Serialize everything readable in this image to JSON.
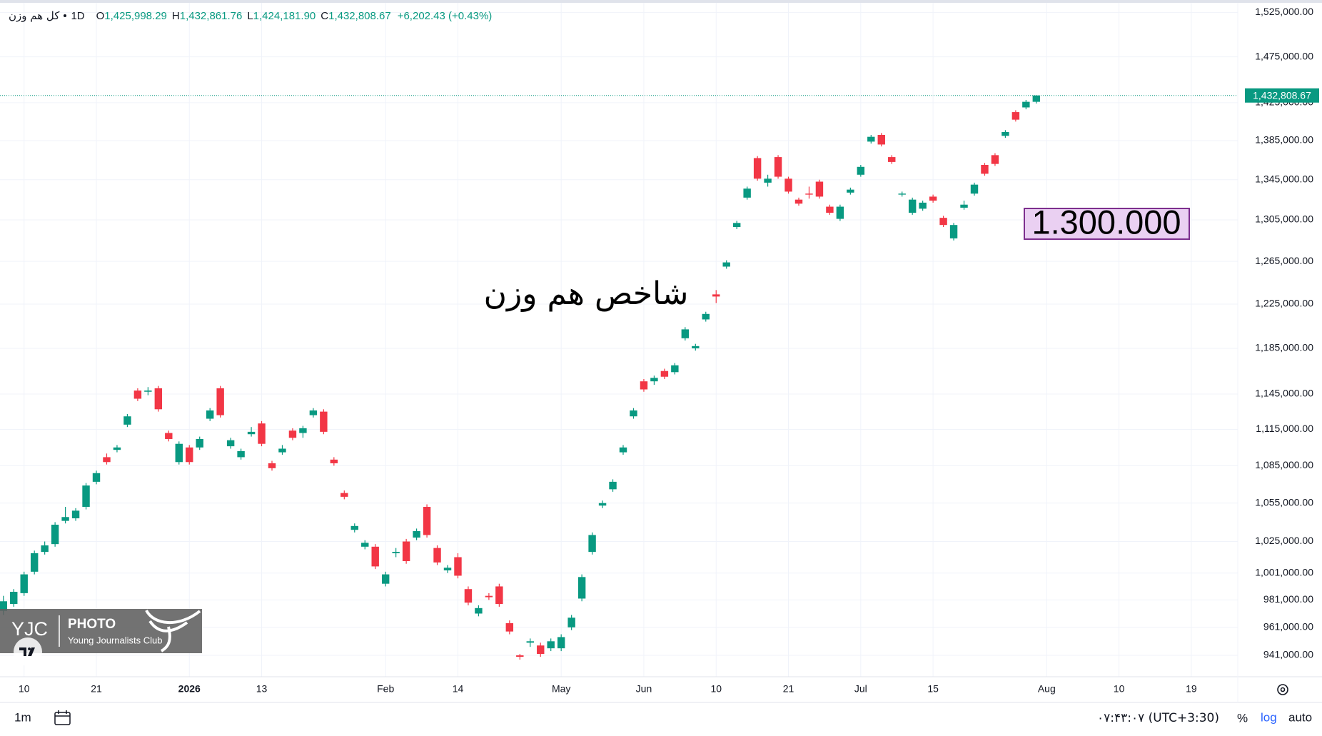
{
  "chart_data": {
    "type": "candlestick",
    "log": true,
    "grid": true,
    "up_color": "#089981",
    "down_color": "#f23645",
    "header": {
      "symbol": "کل هم وزن",
      "interval": "1D",
      "items": [
        {
          "key": "O",
          "value": "1,425,998.29"
        },
        {
          "key": "H",
          "value": "1,432,861.76"
        },
        {
          "key": "L",
          "value": "1,424,181.90"
        },
        {
          "key": "C",
          "value": "1,432,808.67"
        }
      ],
      "change": "+6,202.43 (+0.43%)"
    },
    "last_price_label": "1,432,808.67",
    "annotations": [
      {
        "text": "شاخص هم وزن"
      },
      {
        "text": "1.300.000"
      }
    ],
    "xlim": [
      -0.33,
      119.5
    ],
    "xticks": [
      {
        "value": 2,
        "label": "10"
      },
      {
        "value": 9,
        "label": "21"
      },
      {
        "value": 18,
        "label": "2026"
      },
      {
        "value": 25,
        "label": "13"
      },
      {
        "value": 37,
        "label": "Feb"
      },
      {
        "value": 44,
        "label": "14"
      },
      {
        "value": 54,
        "label": "May"
      },
      {
        "value": 62,
        "label": "Jun"
      },
      {
        "value": 69,
        "label": "10"
      },
      {
        "value": 76,
        "label": "21"
      },
      {
        "value": 83,
        "label": "Jul"
      },
      {
        "value": 90,
        "label": "15"
      },
      {
        "value": 101,
        "label": "Aug"
      },
      {
        "value": 108,
        "label": "10"
      },
      {
        "value": 115,
        "label": "19"
      }
    ],
    "ylim": [
      926000,
      1536000
    ],
    "yticks": [
      {
        "value": 1525000,
        "label": "1,525,000.00"
      },
      {
        "value": 1475000,
        "label": "1,475,000.00"
      },
      {
        "value": 1425000,
        "label": "1,425,000.00"
      },
      {
        "value": 1385000,
        "label": "1,385,000.00"
      },
      {
        "value": 1345000,
        "label": "1,345,000.00"
      },
      {
        "value": 1305000,
        "label": "1,305,000.00"
      },
      {
        "value": 1265000,
        "label": "1,265,000.00"
      },
      {
        "value": 1225000,
        "label": "1,225,000.00"
      },
      {
        "value": 1185000,
        "label": "1,185,000.00"
      },
      {
        "value": 1145000,
        "label": "1,145,000.00"
      },
      {
        "value": 1115000,
        "label": "1,115,000.00"
      },
      {
        "value": 1085000,
        "label": "1,085,000.00"
      },
      {
        "value": 1055000,
        "label": "1,055,000.00"
      },
      {
        "value": 1025000,
        "label": "1,025,000.00"
      },
      {
        "value": 1001000,
        "label": "1,001,000.00"
      },
      {
        "value": 981000,
        "label": "981,000.00"
      },
      {
        "value": 961000,
        "label": "961,000.00"
      },
      {
        "value": 941000,
        "label": "941,000.00"
      }
    ],
    "open": [
      973000,
      978000,
      986000,
      1002000,
      1017000,
      1023000,
      1041000,
      1043000,
      1052000,
      1072000,
      1092000,
      1098000,
      1119000,
      1148000,
      1147000,
      1150000,
      1112000,
      1088000,
      1100000,
      1100000,
      1124000,
      1150000,
      1101000,
      1092000,
      1111000,
      1120000,
      1087000,
      1096000,
      1114000,
      1112000,
      1127000,
      1130000,
      1090000,
      1063000,
      1034000,
      1021000,
      1021000,
      993000,
      1016000,
      1025000,
      1028000,
      1052000,
      1020000,
      1003000,
      1013000,
      989000,
      971000,
      984000,
      991000,
      964000,
      941000,
      950000,
      948000,
      946000,
      946000,
      961000,
      982000,
      1017000,
      1053000,
      1066000,
      1096000,
      1126000,
      1156000,
      1156000,
      1165000,
      1164000,
      1194000,
      1185000,
      1211000,
      1234000,
      1260000,
      1298000,
      1327000,
      1367000,
      1342000,
      1368000,
      1346000,
      1325000,
      1331000,
      1343000,
      1318000,
      1306000,
      1332000,
      1350000,
      1384000,
      1391000,
      1368000,
      1330000,
      1312000,
      1316000,
      1328000,
      1307000,
      1287000,
      1317000,
      1331000,
      1360000,
      1370000,
      1390000,
      1415000,
      1420000,
      1425998.29
    ],
    "high": [
      984000,
      989000,
      1002000,
      1018000,
      1025000,
      1040000,
      1052000,
      1051000,
      1071000,
      1081000,
      1095000,
      1102000,
      1128000,
      1150000,
      1151000,
      1152000,
      1114000,
      1105000,
      1102000,
      1109000,
      1133000,
      1152000,
      1108000,
      1099000,
      1117000,
      1122000,
      1089000,
      1102000,
      1116000,
      1118000,
      1133000,
      1132000,
      1092000,
      1065000,
      1039000,
      1026000,
      1023000,
      1002000,
      1020000,
      1027000,
      1035000,
      1054000,
      1022000,
      1007000,
      1016000,
      991000,
      977000,
      986000,
      993000,
      966000,
      942000,
      953000,
      950000,
      953000,
      956000,
      970000,
      1000000,
      1032000,
      1057000,
      1074000,
      1102000,
      1133000,
      1158000,
      1161000,
      1167000,
      1172000,
      1204000,
      1189000,
      1218000,
      1238000,
      1266000,
      1304000,
      1338000,
      1369000,
      1350000,
      1370000,
      1348000,
      1327000,
      1338000,
      1345000,
      1320000,
      1320000,
      1337000,
      1360000,
      1391000,
      1393000,
      1370000,
      1333000,
      1327000,
      1324000,
      1330000,
      1309000,
      1302000,
      1324000,
      1342000,
      1362000,
      1372000,
      1396000,
      1417000,
      1428000,
      1432861.76
    ],
    "low": [
      970000,
      976000,
      984000,
      1000000,
      1015000,
      1021000,
      1039000,
      1041000,
      1050000,
      1070000,
      1086000,
      1096000,
      1117000,
      1139000,
      1144000,
      1130000,
      1105000,
      1086000,
      1086000,
      1098000,
      1122000,
      1125000,
      1099000,
      1090000,
      1109000,
      1101000,
      1081000,
      1094000,
      1106000,
      1108000,
      1125000,
      1111000,
      1085000,
      1058000,
      1032000,
      1019000,
      1004000,
      991000,
      1013000,
      1008000,
      1026000,
      1028000,
      1007000,
      1001000,
      997000,
      977000,
      969000,
      981000,
      976000,
      956000,
      938000,
      947000,
      940000,
      944000,
      944000,
      959000,
      980000,
      1015000,
      1051000,
      1064000,
      1094000,
      1124000,
      1147000,
      1153000,
      1158000,
      1162000,
      1192000,
      1183000,
      1209000,
      1226000,
      1258000,
      1296000,
      1325000,
      1344000,
      1338000,
      1346000,
      1331000,
      1319000,
      1326000,
      1326000,
      1310000,
      1304000,
      1330000,
      1348000,
      1382000,
      1379000,
      1361000,
      1328000,
      1310000,
      1314000,
      1322000,
      1298000,
      1285000,
      1315000,
      1329000,
      1349000,
      1359000,
      1388000,
      1405000,
      1418000,
      1424181.9
    ],
    "close": [
      980000,
      987000,
      1000000,
      1016000,
      1022000,
      1038000,
      1044000,
      1049000,
      1069000,
      1079000,
      1088000,
      1100000,
      1126000,
      1141000,
      1148000,
      1132000,
      1107000,
      1103000,
      1088000,
      1107000,
      1131000,
      1127000,
      1106000,
      1097000,
      1113000,
      1103000,
      1083000,
      1099000,
      1108000,
      1116000,
      1131000,
      1113000,
      1087000,
      1060000,
      1037000,
      1024000,
      1006000,
      1000000,
      1017000,
      1010000,
      1033000,
      1030000,
      1009000,
      1005000,
      999000,
      979000,
      975000,
      983000,
      978000,
      958000,
      940000,
      951000,
      942000,
      951000,
      954000,
      968000,
      998000,
      1030000,
      1055000,
      1072000,
      1100000,
      1131000,
      1149000,
      1159000,
      1160000,
      1170000,
      1202000,
      1187000,
      1216000,
      1232000,
      1264000,
      1302000,
      1336000,
      1346000,
      1346000,
      1348000,
      1333000,
      1321000,
      1330000,
      1328000,
      1312000,
      1318000,
      1335000,
      1358000,
      1389000,
      1381000,
      1363000,
      1331000,
      1325000,
      1322000,
      1324000,
      1300000,
      1300000,
      1320000,
      1340000,
      1351000,
      1361000,
      1394000,
      1407000,
      1426000,
      1432808.67
    ]
  },
  "watermark": {
    "brand": "YJC",
    "line1": "PHOTO",
    "line2": "Young Journalists Club"
  },
  "toolbar": {
    "range": "1m",
    "time": "۰۷:۴۳:۰۷ (UTC+3:30)",
    "percent": "%",
    "log": "log",
    "auto": "auto"
  }
}
